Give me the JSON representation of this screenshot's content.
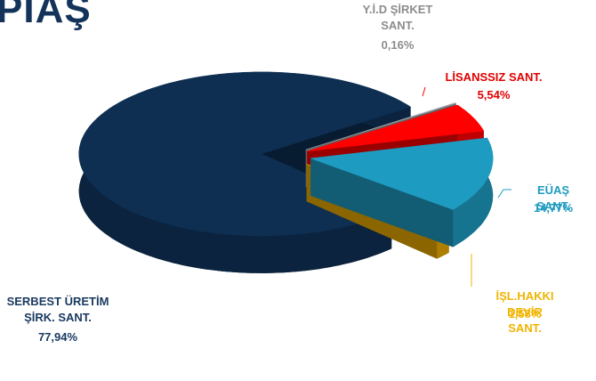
{
  "chart_data": {
    "type": "pie",
    "title": "PIAŞ",
    "categories": [
      "Y.İ.D  ŞİRKET\nSANT.",
      "LİSANSSIZ SANT.",
      "EÜAŞ SANT.",
      "İŞL.HAKKI DEVİR SANT.",
      "SERBEST ÜRETİM\nŞİRK. SANT."
    ],
    "values": [
      0.16,
      5.54,
      14.77,
      1.58,
      77.94
    ],
    "value_labels": [
      "0,16%",
      "5,54%",
      "14,77%",
      "1,58%",
      "77,94%"
    ],
    "colors": [
      "#a0a4a8",
      "#ff0000",
      "#1e9bc0",
      "#e6a800",
      "#0e2f52"
    ],
    "label_colors": [
      "#8c8c8c",
      "#e00000",
      "#1e9bc0",
      "#f0b400",
      "#1a3a60"
    ]
  }
}
